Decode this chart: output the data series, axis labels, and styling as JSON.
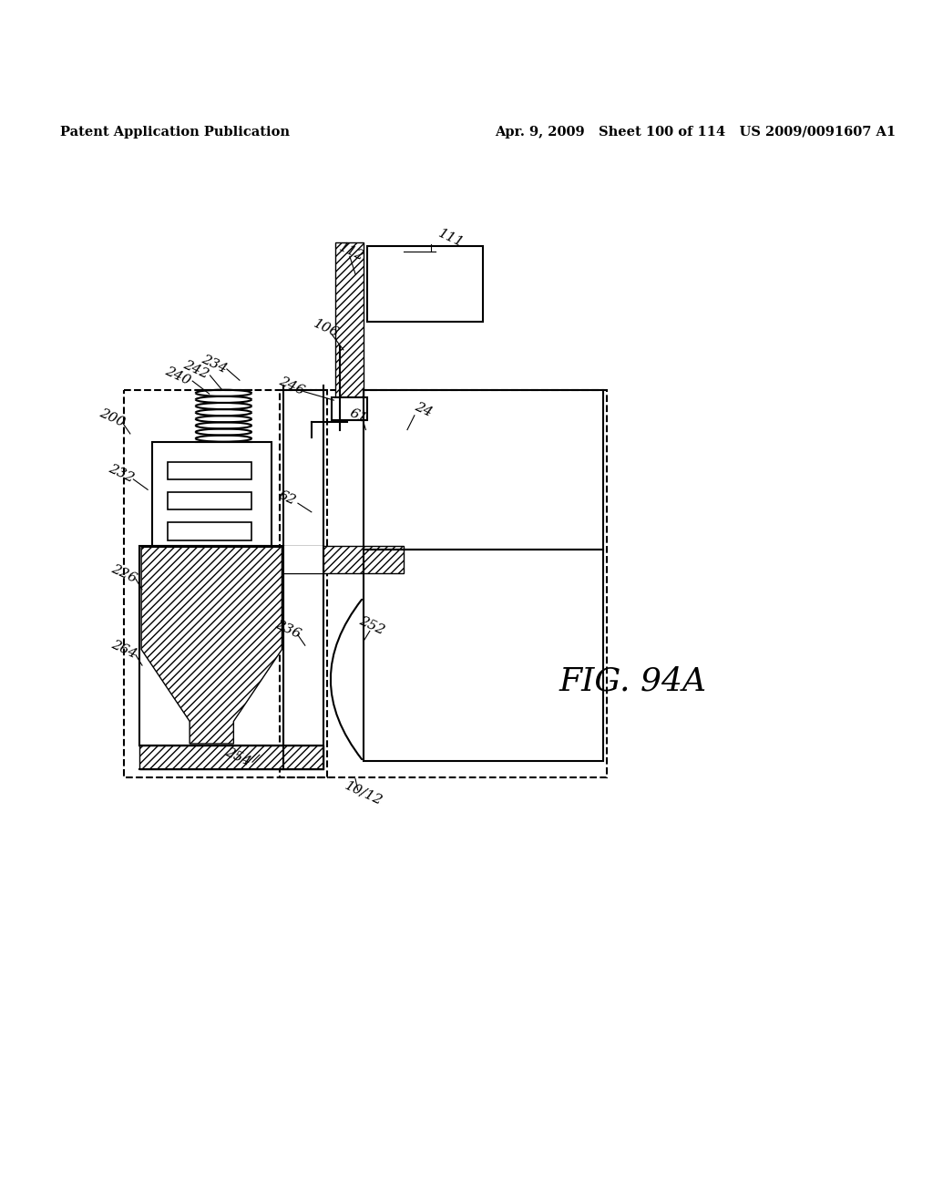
{
  "bg_color": "#ffffff",
  "line_color": "#000000",
  "header_left": "Patent Application Publication",
  "header_right": "Apr. 9, 2009   Sheet 100 of 114   US 2009/0091607 A1",
  "fig_label": "FIG. 94A"
}
